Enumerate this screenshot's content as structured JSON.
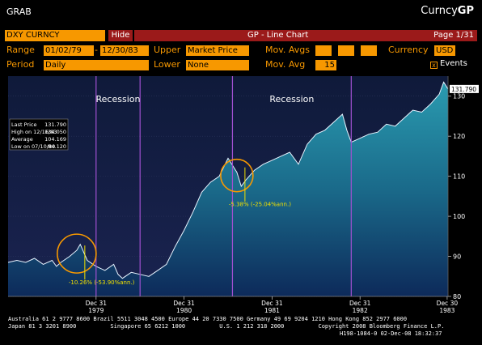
{
  "header": {
    "grab": "GRAB",
    "brand_main": "Curncy",
    "brand_bold": "GP"
  },
  "toolbar": {
    "ticker": "DXY CURNCY",
    "hide_label": "Hide",
    "title": "GP - Line Chart",
    "page": "Page 1/31",
    "range_label": "Range",
    "range_start": "01/02/79",
    "range_end": "12/30/83",
    "upper_label": "Upper",
    "upper_value": "Market Price",
    "movavgs_label": "Mov. Avgs",
    "currency_label": "Currency",
    "currency_value": "USD",
    "period_label": "Period",
    "period_value": "Daily",
    "lower_label": "Lower",
    "lower_value": "None",
    "movavg_label": "Mov. Avg",
    "movavg_value": "15",
    "events_label": "Events",
    "events_checked": "x"
  },
  "chart_data": {
    "type": "area",
    "title": "",
    "ylim": [
      80,
      135
    ],
    "y_ticks": [
      "80",
      "90",
      "100",
      "110",
      "120",
      "130"
    ],
    "x_ticks": [
      {
        "line1": "Dec 31",
        "line2": "1979"
      },
      {
        "line1": "Dec 31",
        "line2": "1980"
      },
      {
        "line1": "Dec 31",
        "line2": "1981"
      },
      {
        "line1": "Dec 31",
        "line2": "1982"
      },
      {
        "line1": "Dec 30",
        "line2": "1983"
      }
    ],
    "series": [
      {
        "x": [
          1979.0,
          1979.1,
          1979.2,
          1979.3,
          1979.4,
          1979.5,
          1979.55,
          1979.6,
          1979.7,
          1979.78,
          1979.82,
          1979.9,
          1980.0,
          1980.1,
          1980.2,
          1980.25,
          1980.3,
          1980.4,
          1980.5,
          1980.6,
          1980.7,
          1980.8,
          1980.9,
          1981.0,
          1981.1,
          1981.2,
          1981.3,
          1981.4,
          1981.5,
          1981.6,
          1981.65,
          1981.7,
          1981.8,
          1981.9,
          1982.0,
          1982.1,
          1982.2,
          1982.3,
          1982.4,
          1982.5,
          1982.6,
          1982.7,
          1982.8,
          1982.85,
          1982.9,
          1983.0,
          1983.1,
          1983.2,
          1983.3,
          1983.4,
          1983.5,
          1983.6,
          1983.7,
          1983.8,
          1983.9,
          1983.95,
          1984.0
        ],
        "values": [
          88.5,
          89.0,
          88.5,
          89.5,
          88.0,
          89.0,
          87.5,
          88.5,
          90.0,
          91.5,
          93.0,
          89.0,
          87.5,
          86.5,
          88.0,
          85.5,
          84.5,
          86.0,
          85.5,
          85.0,
          86.5,
          88.0,
          92.5,
          96.5,
          101.0,
          106.0,
          108.5,
          110.0,
          114.5,
          111.0,
          107.5,
          109.0,
          111.5,
          113.0,
          114.0,
          115.0,
          116.0,
          113.0,
          118.0,
          120.5,
          121.5,
          123.5,
          125.5,
          121.5,
          118.5,
          119.5,
          120.5,
          121.0,
          123.0,
          122.5,
          124.5,
          126.5,
          126.0,
          128.0,
          130.5,
          133.5,
          131.79
        ]
      }
    ],
    "recessions": [
      [
        1980.0,
        1980.5
      ],
      [
        1981.55,
        1982.9
      ]
    ],
    "recession_label": "Recession",
    "annotations": [
      {
        "text": "-10.26% (-53.90%ann.)",
        "x": 1979.82
      },
      {
        "text": "-5.38% (-25.04%ann.)",
        "x": 1981.65
      }
    ],
    "last_price_tag": "131.790",
    "stats": [
      {
        "label": "Last Price",
        "value": "131.790"
      },
      {
        "label": "High on 12/16/83",
        "value": "134.050"
      },
      {
        "label": "Average",
        "value": "104.169"
      },
      {
        "label": "Low on 07/10/80",
        "value": "84.120"
      }
    ]
  },
  "footer": {
    "line1": "Australia 61 2 9777 8600 Brazil 5511 3048 4500 Europe 44 20 7330 7500 Germany 49 69 9204 1210 Hong Kong 852 2977 6000",
    "line2": "Japan 81 3 3201 8900          Singapore 65 6212 1000          U.S. 1 212 318 2000          Copyright 2008 Bloomberg Finance L.P.",
    "line3": "H198-1084-0 02-Dec-08 18:32:37"
  }
}
